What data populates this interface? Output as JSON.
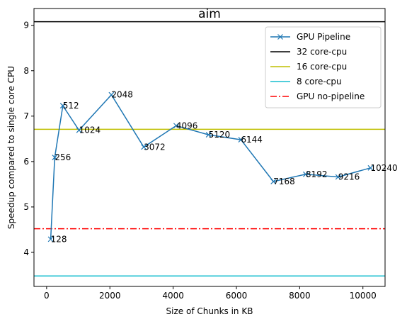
{
  "chart_data": {
    "type": "line",
    "title": "aim",
    "xlabel": "Size of Chunks in KB",
    "ylabel": "Speedup compared to single core CPU",
    "xlim": [
      -400,
      10700
    ],
    "ylim": [
      3.25,
      9.37
    ],
    "xticks": [
      0,
      2000,
      4000,
      6000,
      8000,
      10000
    ],
    "yticks": [
      4,
      5,
      6,
      7,
      8,
      9
    ],
    "grid": false,
    "legend_position": "top-right",
    "series": [
      {
        "name": "GPU Pipeline",
        "kind": "line-marker",
        "marker": "x",
        "color": "#1f77b4",
        "x": [
          128,
          256,
          512,
          1024,
          2048,
          3072,
          4096,
          5120,
          6144,
          7168,
          8192,
          9216,
          10240
        ],
        "y": [
          4.29,
          6.09,
          7.23,
          6.69,
          7.47,
          6.32,
          6.79,
          6.59,
          6.48,
          5.56,
          5.72,
          5.66,
          5.86
        ],
        "point_labels": [
          "128",
          "256",
          "512",
          "1024",
          "2048",
          "3072",
          "4096",
          "5120",
          "6144",
          "7168",
          "8192",
          "9216",
          "10240"
        ]
      }
    ],
    "reference_lines": [
      {
        "name": "32 core-cpu",
        "y": 9.08,
        "color": "#000000",
        "dash": "solid"
      },
      {
        "name": "16 core-cpu",
        "y": 6.71,
        "color": "#bfbf00",
        "dash": "solid"
      },
      {
        "name": "8 core-cpu",
        "y": 3.48,
        "color": "#17becf",
        "dash": "solid"
      },
      {
        "name": "GPU no-pipeline",
        "y": 4.52,
        "color": "#ff0000",
        "dash": "dashdot"
      }
    ]
  }
}
